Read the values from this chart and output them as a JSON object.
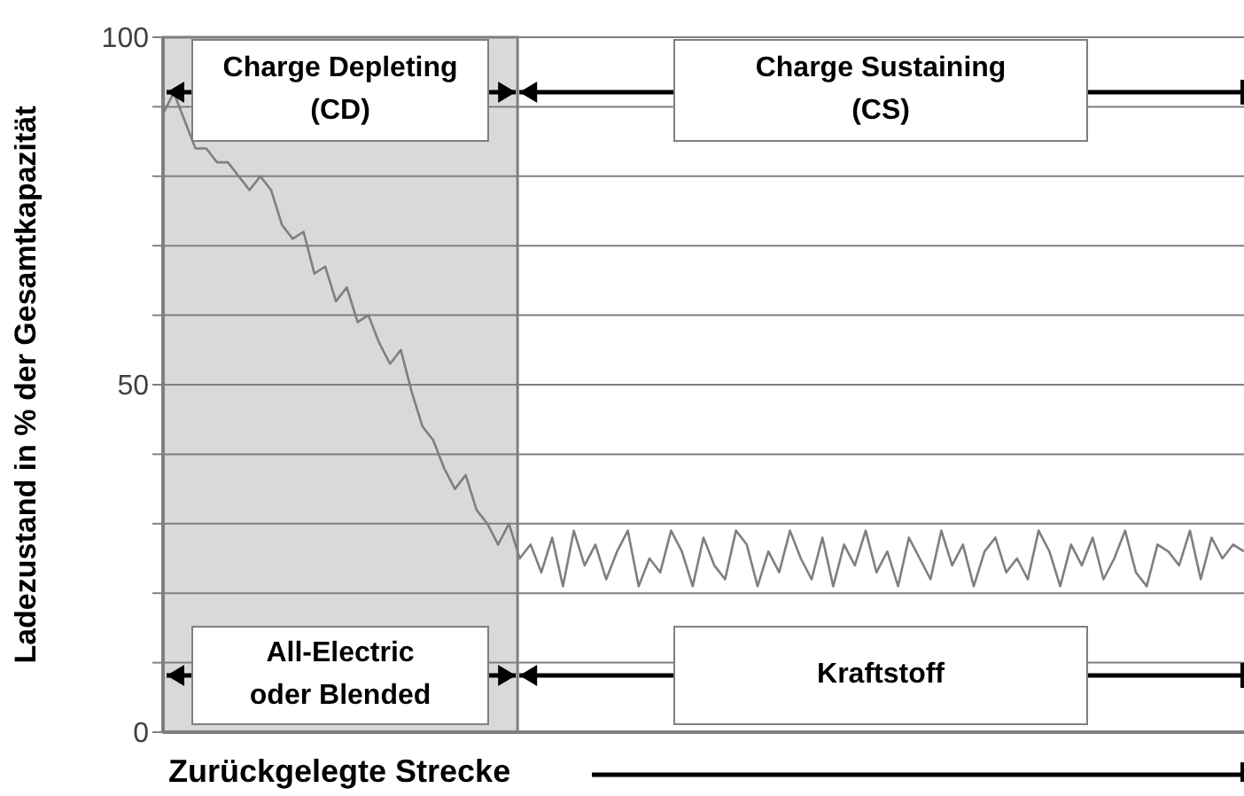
{
  "chart_data": {
    "type": "line",
    "ylabel": "Ladezustand in % der Gesamtkapazität",
    "xlabel": "Zurückgelegte Strecke",
    "categories": [
      null,
      null,
      null,
      null,
      null,
      null,
      null,
      null,
      null,
      null,
      null,
      null,
      null,
      null,
      null,
      null,
      null,
      null,
      null,
      null,
      null,
      null,
      null,
      null,
      null,
      null,
      null,
      null,
      null,
      null,
      null,
      null,
      null,
      null,
      null,
      null,
      null,
      null,
      null,
      null,
      null,
      null,
      null,
      null,
      null,
      null,
      null,
      null,
      null,
      null,
      null,
      null,
      null,
      null,
      null,
      null,
      null,
      null,
      null,
      null,
      null,
      null,
      null,
      null,
      null,
      null,
      null,
      null,
      null,
      null,
      null,
      null,
      null,
      null,
      null,
      null,
      null,
      null,
      null,
      null,
      null,
      null,
      null,
      null,
      null,
      null,
      null,
      null,
      null,
      null,
      null,
      null,
      null,
      null,
      null,
      null,
      null,
      null,
      null,
      null,
      null
    ],
    "series": [
      {
        "color": "#7f7f7f",
        "values": [
          89,
          92,
          88,
          84,
          84,
          82,
          82,
          80,
          78,
          80,
          78,
          73,
          71,
          72,
          66,
          67,
          62,
          64,
          59,
          60,
          56,
          53,
          55,
          49,
          44,
          42,
          38,
          35,
          37,
          32,
          30,
          27,
          30,
          25,
          27,
          23,
          28,
          21,
          29,
          24,
          27,
          22,
          26,
          29,
          21,
          25,
          23,
          29,
          26,
          21,
          28,
          24,
          22,
          29,
          27,
          21,
          26,
          23,
          29,
          25,
          22,
          28,
          21,
          27,
          24,
          29,
          23,
          26,
          21,
          28,
          25,
          22,
          29,
          24,
          27,
          21,
          26,
          28,
          23,
          25,
          22,
          29,
          26,
          21,
          27,
          24,
          28,
          22,
          25,
          29,
          23,
          21,
          27,
          26,
          24,
          29,
          22,
          28,
          25,
          27,
          26
        ]
      }
    ],
    "ylim": [
      0,
      100
    ],
    "yticks": [
      0,
      {
        "value": 10,
        "label": null
      },
      {
        "value": 20,
        "label": null
      },
      {
        "value": 30,
        "label": null
      },
      {
        "value": 40,
        "label": null
      },
      50,
      {
        "value": 60,
        "label": null
      },
      {
        "value": 70,
        "label": null
      },
      {
        "value": 80,
        "label": null
      },
      {
        "value": 90,
        "label": null
      },
      100
    ],
    "tick_labels": "y",
    "grid": "y",
    "annotations": [
      "Charge Depleting\n(CD)",
      "Charge Sustaining\n(CS)",
      "All-Electric\noder Blended",
      "Kraftstoff"
    ]
  }
}
